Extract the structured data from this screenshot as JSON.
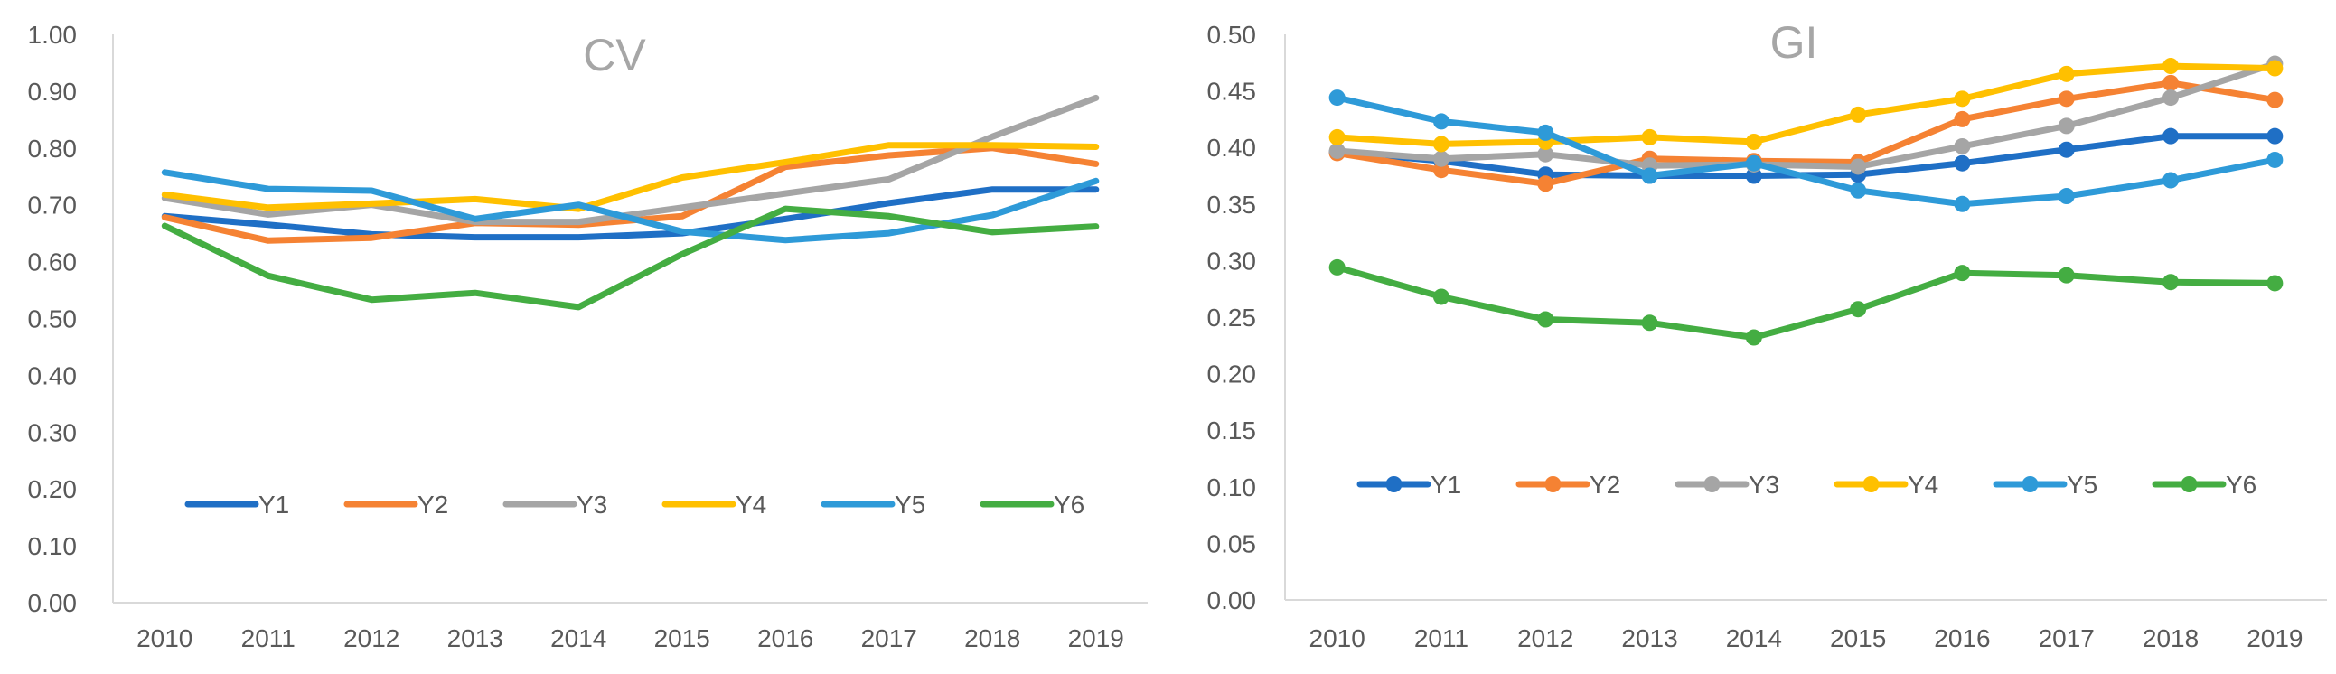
{
  "chart_data": [
    {
      "type": "line",
      "title": "CV",
      "xlabel": "",
      "ylabel": "",
      "x": [
        "2010",
        "2011",
        "2012",
        "2013",
        "2014",
        "2015",
        "2016",
        "2017",
        "2018",
        "2019"
      ],
      "ylim": [
        0,
        1
      ],
      "y_ticks": [
        0,
        0.1,
        0.2,
        0.3,
        0.4,
        0.5,
        0.6,
        0.7,
        0.8,
        0.9,
        1.0
      ],
      "y_tick_labels": [
        "0.00",
        "0.10",
        "0.20",
        "0.30",
        "0.40",
        "0.50",
        "0.60",
        "0.70",
        "0.80",
        "0.90",
        "1.00"
      ],
      "markers": false,
      "grid": false,
      "legend_position": "inside-bottom",
      "series": [
        {
          "name": "Y1",
          "color": "#1f6fc5",
          "values": [
            0.68,
            0.665,
            0.648,
            0.643,
            0.643,
            0.65,
            0.675,
            0.703,
            0.727,
            0.727
          ]
        },
        {
          "name": "Y2",
          "color": "#f58233",
          "values": [
            0.678,
            0.637,
            0.642,
            0.668,
            0.665,
            0.68,
            0.767,
            0.787,
            0.8,
            0.772
          ]
        },
        {
          "name": "Y3",
          "color": "#a5a5a5",
          "values": [
            0.712,
            0.683,
            0.7,
            0.67,
            0.67,
            0.695,
            0.72,
            0.745,
            0.82,
            0.888
          ]
        },
        {
          "name": "Y4",
          "color": "#ffc000",
          "values": [
            0.718,
            0.695,
            0.702,
            0.71,
            0.693,
            0.748,
            0.775,
            0.805,
            0.805,
            0.802
          ]
        },
        {
          "name": "Y5",
          "color": "#2e9ad8",
          "values": [
            0.757,
            0.728,
            0.725,
            0.675,
            0.7,
            0.653,
            0.638,
            0.65,
            0.682,
            0.742
          ]
        },
        {
          "name": "Y6",
          "color": "#44ad42",
          "values": [
            0.663,
            0.575,
            0.533,
            0.545,
            0.52,
            0.613,
            0.693,
            0.68,
            0.652,
            0.662
          ]
        }
      ]
    },
    {
      "type": "line",
      "title": "GI",
      "xlabel": "",
      "ylabel": "",
      "x": [
        "2010",
        "2011",
        "2012",
        "2013",
        "2014",
        "2015",
        "2016",
        "2017",
        "2018",
        "2019"
      ],
      "ylim": [
        0,
        0.5
      ],
      "y_ticks": [
        0,
        0.05,
        0.1,
        0.15,
        0.2,
        0.25,
        0.3,
        0.35,
        0.4,
        0.45,
        0.5
      ],
      "y_tick_labels": [
        "0.00",
        "0.05",
        "0.10",
        "0.15",
        "0.20",
        "0.25",
        "0.30",
        "0.35",
        "0.40",
        "0.45",
        "0.50"
      ],
      "markers": true,
      "grid": false,
      "legend_position": "inside-bottom",
      "series": [
        {
          "name": "Y1",
          "color": "#1f6fc5",
          "values": [
            0.396,
            0.388,
            0.376,
            0.375,
            0.375,
            0.376,
            0.386,
            0.398,
            0.41,
            0.41
          ]
        },
        {
          "name": "Y2",
          "color": "#f58233",
          "values": [
            0.395,
            0.38,
            0.368,
            0.39,
            0.388,
            0.387,
            0.425,
            0.443,
            0.457,
            0.442
          ]
        },
        {
          "name": "Y3",
          "color": "#a5a5a5",
          "values": [
            0.397,
            0.39,
            0.394,
            0.384,
            0.385,
            0.383,
            0.401,
            0.419,
            0.444,
            0.474
          ]
        },
        {
          "name": "Y4",
          "color": "#ffc000",
          "values": [
            0.409,
            0.403,
            0.405,
            0.409,
            0.405,
            0.429,
            0.443,
            0.465,
            0.472,
            0.47
          ]
        },
        {
          "name": "Y5",
          "color": "#2e9ad8",
          "values": [
            0.444,
            0.423,
            0.413,
            0.375,
            0.386,
            0.362,
            0.35,
            0.357,
            0.371,
            0.389
          ]
        },
        {
          "name": "Y6",
          "color": "#44ad42",
          "values": [
            0.294,
            0.268,
            0.248,
            0.245,
            0.232,
            0.257,
            0.289,
            0.287,
            0.281,
            0.28
          ]
        }
      ]
    }
  ]
}
